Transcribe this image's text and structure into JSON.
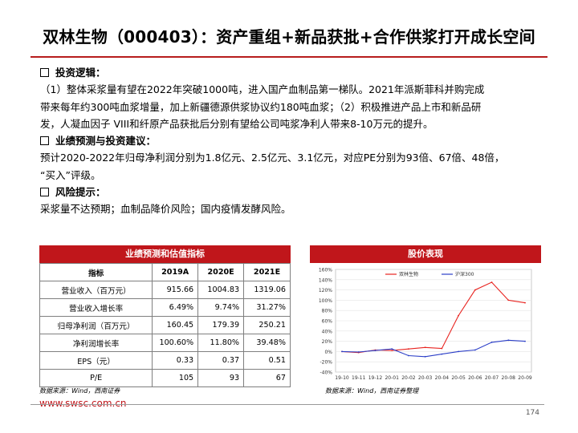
{
  "title": "双林生物（000403）：资产重组+新品获批+合作供浆打开成长空间",
  "sections": [
    {
      "heading": "投资逻辑：",
      "lines": [
        "（1）整体采浆量有望在2022年突破1000吨，进入国产血制品第一梯队。2021年派斯菲科并购完成",
        "带来每年约300吨血浆增量，加上新疆德源供浆协议约180吨血浆；（2）积极推进产品上市和新品研",
        "发，人凝血因子 VIII和纤原产品获批后分别有望给公司吨浆净利人带来8-10万元的提升。"
      ]
    },
    {
      "heading": "业绩预测与投资建议：",
      "lines": [
        "预计2020-2022年归母净利润分别为1.8亿元、2.5亿元、3.1亿元，对应PE分别为93倍、67倍、48倍，",
        "“买入”评级。"
      ]
    },
    {
      "heading": "风险提示：",
      "lines": [
        "采浆量不达预期；血制品降价风险；国内疫情发酵风险。"
      ]
    }
  ],
  "table": {
    "title": "业绩预测和估值指标",
    "headers": [
      "指标",
      "2019A",
      "2020E",
      "2021E"
    ],
    "rows": [
      [
        "营业收入（百万元）",
        "915.66",
        "1004.83",
        "1319.06"
      ],
      [
        "营业收入增长率",
        "6.49%",
        "9.74%",
        "31.27%"
      ],
      [
        "归母净利润（百万元）",
        "160.45",
        "179.39",
        "250.21"
      ],
      [
        "净利润增长率",
        "100.60%",
        "11.80%",
        "39.48%"
      ],
      [
        "EPS（元）",
        "0.33",
        "0.37",
        "0.51"
      ],
      [
        "P/E",
        "105",
        "93",
        "67"
      ]
    ]
  },
  "chart_data": {
    "type": "line",
    "title": "股价表现",
    "x": [
      "19-10",
      "19-11",
      "19-12",
      "20-01",
      "20-02",
      "20-03",
      "20-04",
      "20-05",
      "20-06",
      "20-07",
      "20-08",
      "20-09"
    ],
    "y_ticks": [
      "-40%",
      "-20%",
      "0%",
      "20%",
      "40%",
      "60%",
      "80%",
      "100%",
      "120%",
      "140%",
      "160%"
    ],
    "ylim": [
      -40,
      160
    ],
    "grid": true,
    "legend_position": "top",
    "series": [
      {
        "name": "双林生物",
        "color": "#e8231f",
        "values": [
          0,
          -2,
          3,
          2,
          5,
          8,
          6,
          70,
          120,
          135,
          100,
          95
        ]
      },
      {
        "name": "沪深300",
        "color": "#2b3ec7",
        "values": [
          0,
          -1,
          2,
          5,
          -8,
          -10,
          -5,
          0,
          3,
          18,
          22,
          20
        ]
      }
    ]
  },
  "footer": {
    "source_left": "数据来源：Wind，西南证券",
    "source_right": "数据来源：Wind，西南证券整理",
    "url": "www.swsc.com.cn",
    "page": "174"
  }
}
